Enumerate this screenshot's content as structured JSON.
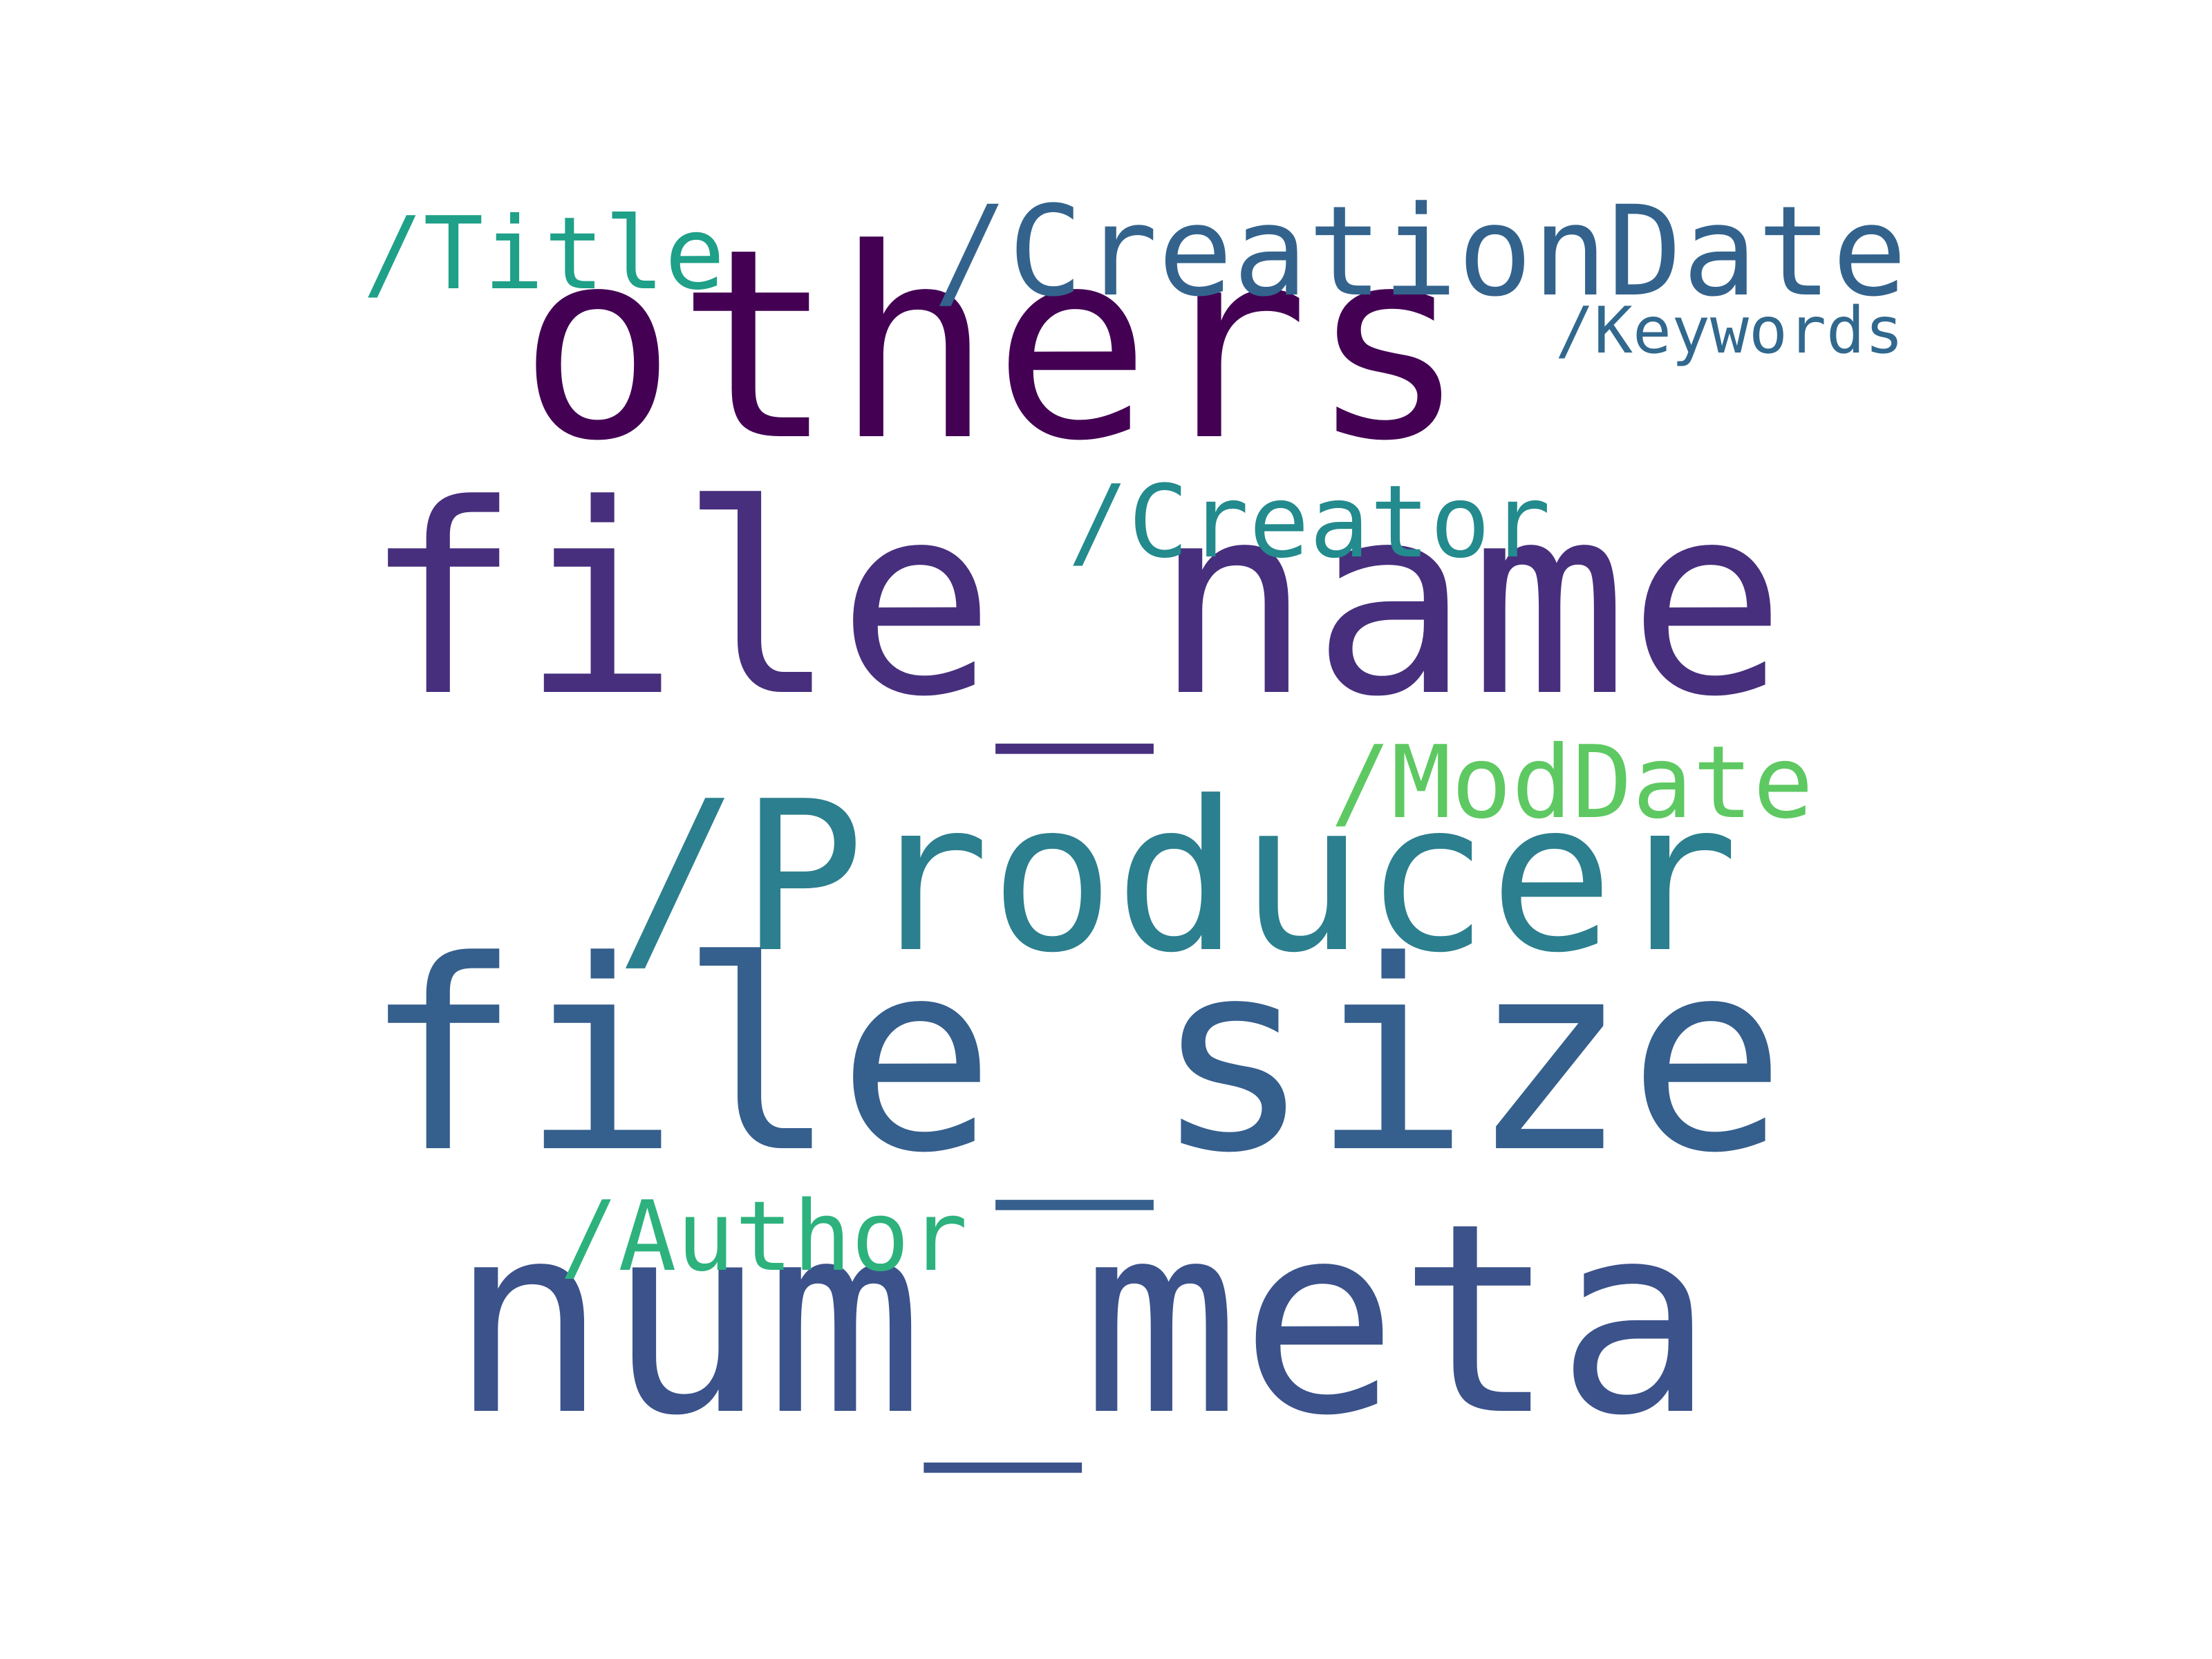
{
  "words": [
    {
      "text": "others",
      "color": "#440154"
    },
    {
      "text": "file_name",
      "color": "#472f7d"
    },
    {
      "text": "/Producer",
      "color": "#2c7f8e"
    },
    {
      "text": "file_size",
      "color": "#355f8d"
    },
    {
      "text": "num_meta",
      "color": "#3b528b"
    },
    {
      "text": "/CreationDate",
      "color": "#33638d"
    },
    {
      "text": "/Title",
      "color": "#1fa088"
    },
    {
      "text": "/Keywords",
      "color": "#31688e"
    },
    {
      "text": "/Creator",
      "color": "#238a8d"
    },
    {
      "text": "/ModDate",
      "color": "#5ec962"
    },
    {
      "text": "/Author",
      "color": "#2db27d"
    }
  ]
}
